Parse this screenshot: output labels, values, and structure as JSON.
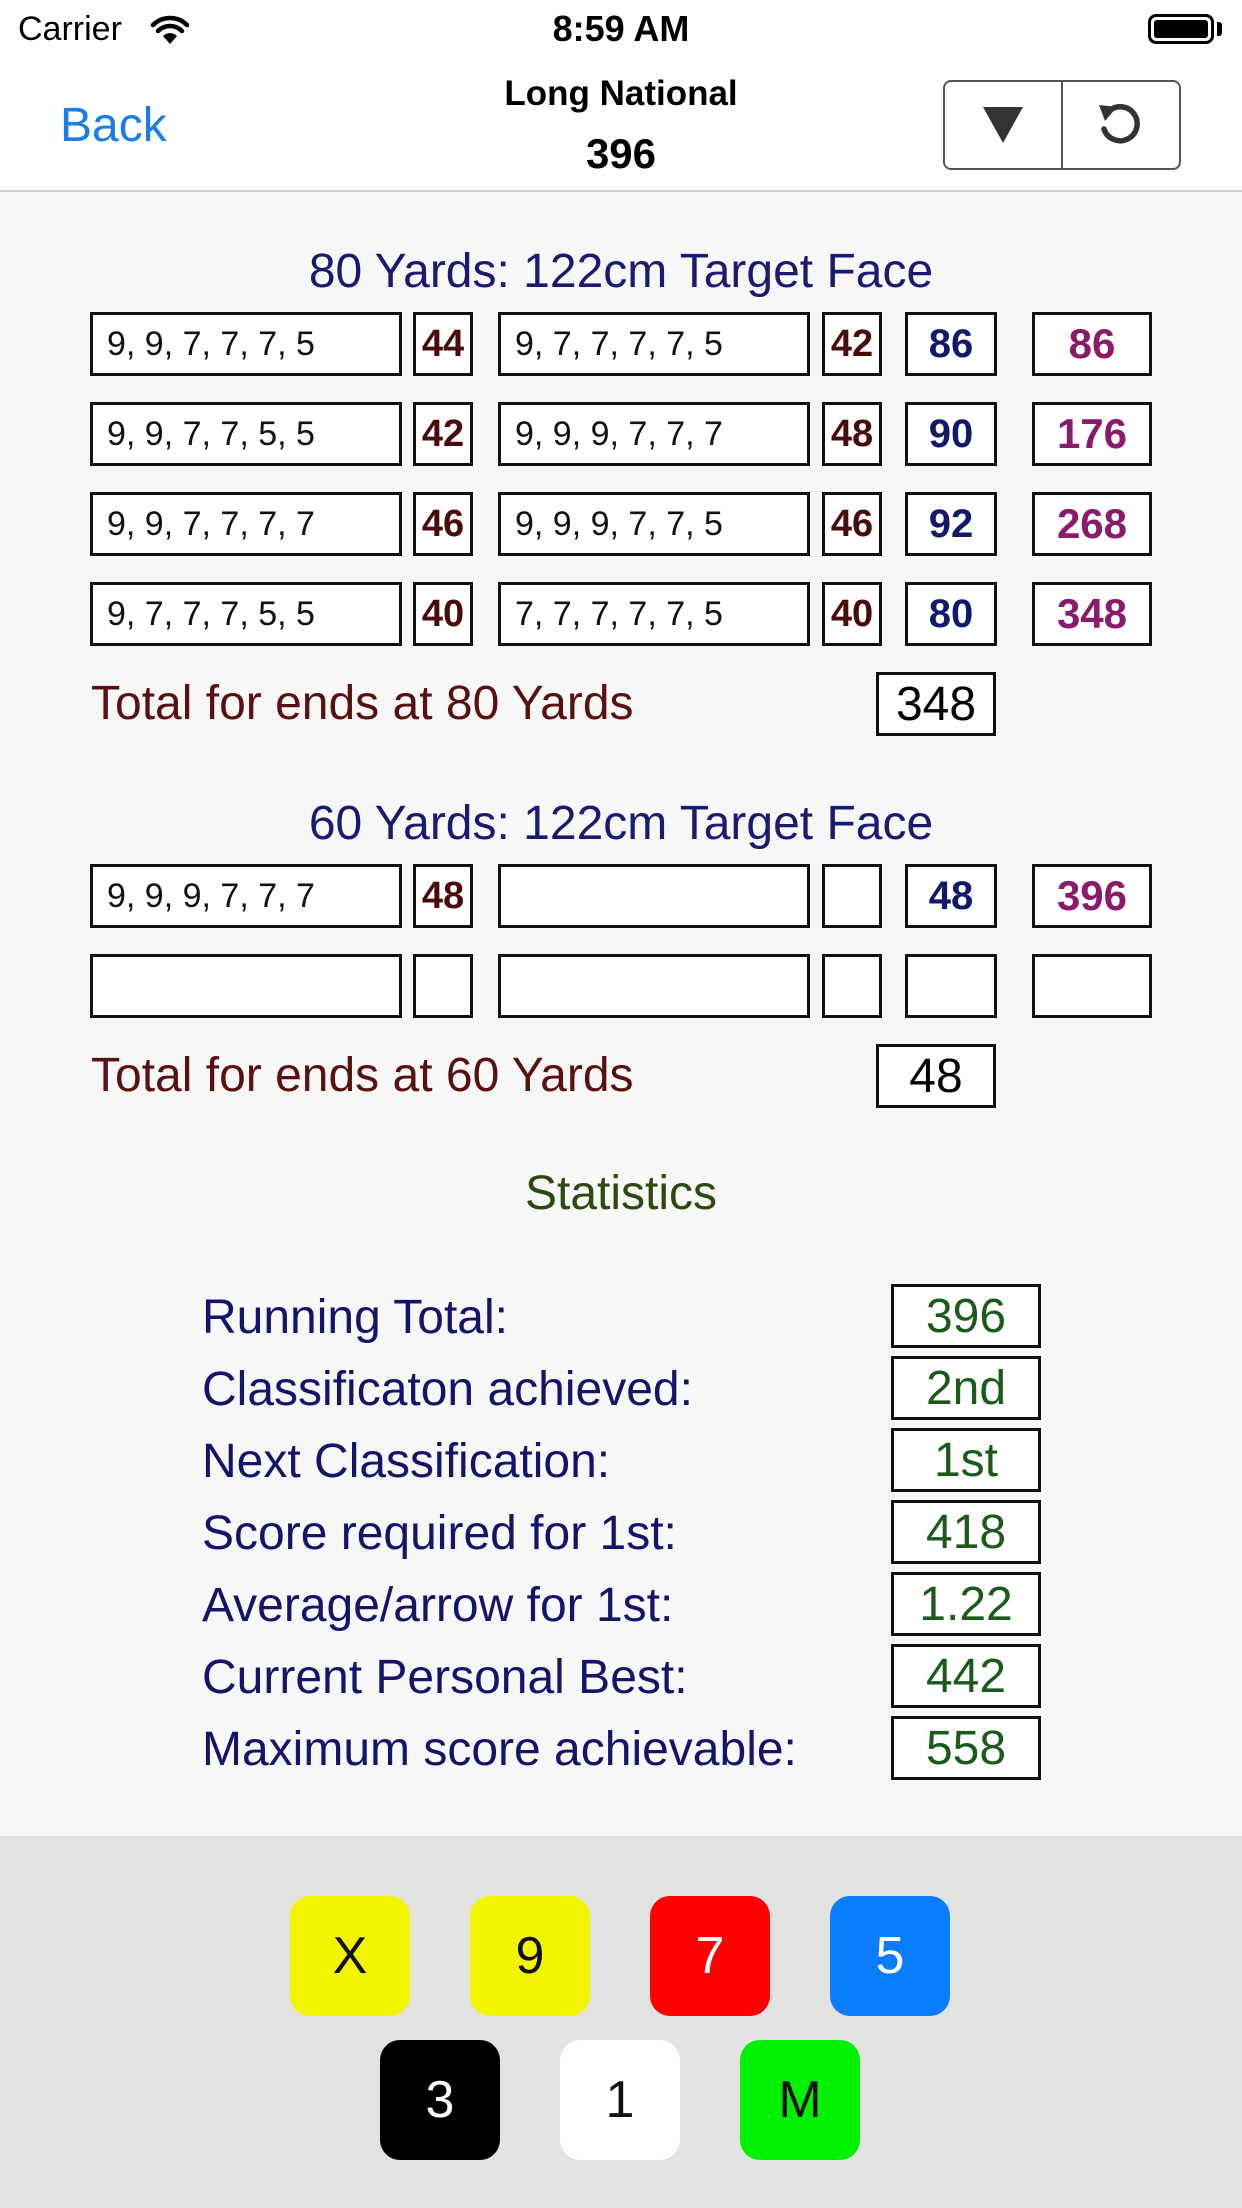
{
  "status_bar": {
    "carrier": "Carrier",
    "time": "8:59 AM"
  },
  "nav": {
    "back_label": "Back",
    "title": "Long National",
    "score": "396"
  },
  "sections": [
    {
      "title": "80 Yards: 122cm Target Face",
      "total_label": "Total for ends at 80 Yards",
      "total": "348",
      "rows": [
        {
          "arrows1": "9, 9, 7, 7, 7, 5",
          "end1": "44",
          "arrows2": "9, 7, 7, 7, 7, 5",
          "end2": "42",
          "dozen": "86",
          "running": "86"
        },
        {
          "arrows1": "9, 9, 7, 7, 5, 5",
          "end1": "42",
          "arrows2": "9, 9, 9, 7, 7, 7",
          "end2": "48",
          "dozen": "90",
          "running": "176"
        },
        {
          "arrows1": "9, 9, 7, 7, 7, 7",
          "end1": "46",
          "arrows2": "9, 9, 9, 7, 7, 5",
          "end2": "46",
          "dozen": "92",
          "running": "268"
        },
        {
          "arrows1": "9, 7, 7, 7, 5, 5",
          "end1": "40",
          "arrows2": "7, 7, 7, 7, 7, 5",
          "end2": "40",
          "dozen": "80",
          "running": "348"
        }
      ]
    },
    {
      "title": "60 Yards: 122cm Target Face",
      "total_label": "Total for ends at 60 Yards",
      "total": "48",
      "rows": [
        {
          "arrows1": "9, 9, 9, 7, 7, 7",
          "end1": "48",
          "arrows2": "",
          "end2": "",
          "dozen": "48",
          "running": "396"
        },
        {
          "arrows1": "",
          "end1": "",
          "arrows2": "",
          "end2": "",
          "dozen": "",
          "running": ""
        }
      ]
    }
  ],
  "statistics": {
    "title": "Statistics",
    "items": [
      {
        "label": "Running Total:",
        "value": "396"
      },
      {
        "label": "Classificaton achieved:",
        "value": "2nd"
      },
      {
        "label": "Next Classification:",
        "value": "1st"
      },
      {
        "label": "Score required for 1st:",
        "value": "418"
      },
      {
        "label": "Average/arrow for 1st:",
        "value": "1.22"
      },
      {
        "label": "Current Personal Best:",
        "value": "442"
      },
      {
        "label": "Maximum score achievable:",
        "value": "558"
      }
    ]
  },
  "keypad": [
    {
      "label": "X",
      "bg": "#f2f500",
      "fg": "#111111"
    },
    {
      "label": "9",
      "bg": "#f2f500",
      "fg": "#111111"
    },
    {
      "label": "7",
      "bg": "#ff0000",
      "fg": "#ffffff"
    },
    {
      "label": "5",
      "bg": "#0a7dff",
      "fg": "#ffffff"
    },
    {
      "label": "3",
      "bg": "#000000",
      "fg": "#ffffff"
    },
    {
      "label": "1",
      "bg": "#ffffff",
      "fg": "#111111"
    },
    {
      "label": "M",
      "bg": "#00f000",
      "fg": "#111111"
    }
  ],
  "icons": {
    "dropdown": "down-triangle-icon",
    "reset": "refresh-icon"
  }
}
